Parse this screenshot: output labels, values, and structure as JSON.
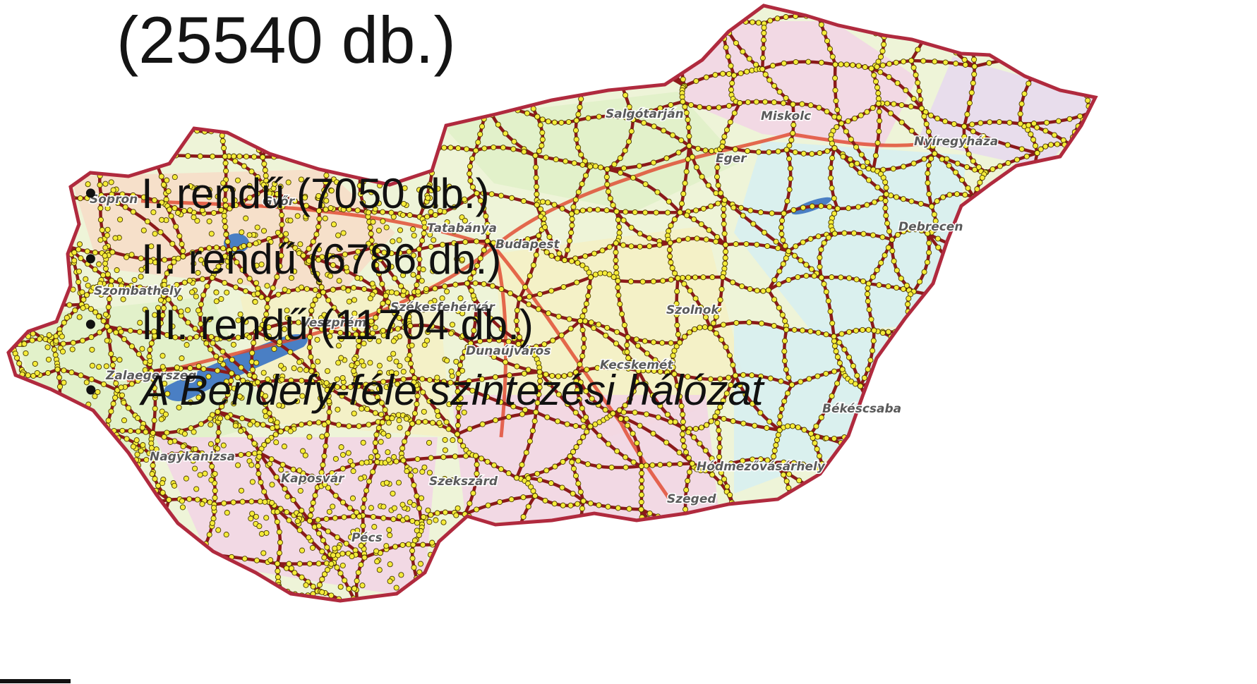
{
  "slide": {
    "title": "(25540 db.)",
    "bullets": [
      {
        "text": "I. rendű (7050 db.)",
        "italic": false
      },
      {
        "text": "II. rendű (6786 db.)",
        "italic": false
      },
      {
        "text": "III. rendű (11704 db.)",
        "italic": false
      },
      {
        "text": "A Bendefy-féle szintezési hálózat",
        "italic": true
      }
    ]
  },
  "map": {
    "cities": [
      "Salgótarján",
      "Miskolc",
      "Eger",
      "Nyíregyháza",
      "Sopron",
      "Győr",
      "Tatabánya",
      "Budapest",
      "Debrecen",
      "Szombathely",
      "Székesfehérvár",
      "Szolnok",
      "Veszprém",
      "Dunaújváros",
      "Kecskemét",
      "Zalaegerszeg",
      "Békéscsaba",
      "Nagykanizsa",
      "Hódmezővásárhely",
      "Kaposvár",
      "Szekszárd",
      "Szeged",
      "Pécs"
    ],
    "colors": {
      "background": "#ffffff",
      "country_fill": "#eef4d8",
      "country_border": "#b02a3e",
      "region_fill_pink": "#f2d4e6",
      "region_fill_green": "#dff0c8",
      "region_fill_cyan": "#d6eef2",
      "region_fill_yellow": "#f4f0c4",
      "region_fill_lilac": "#e6d8f0",
      "region_fill_peach": "#f7dcc8",
      "level_line": "#8b1a1a",
      "benchmark_marker": "#f5ec3a",
      "benchmark_marker_outline": "#4a3a00",
      "water": "#4a7fc4",
      "highway": "#e0452a"
    }
  }
}
